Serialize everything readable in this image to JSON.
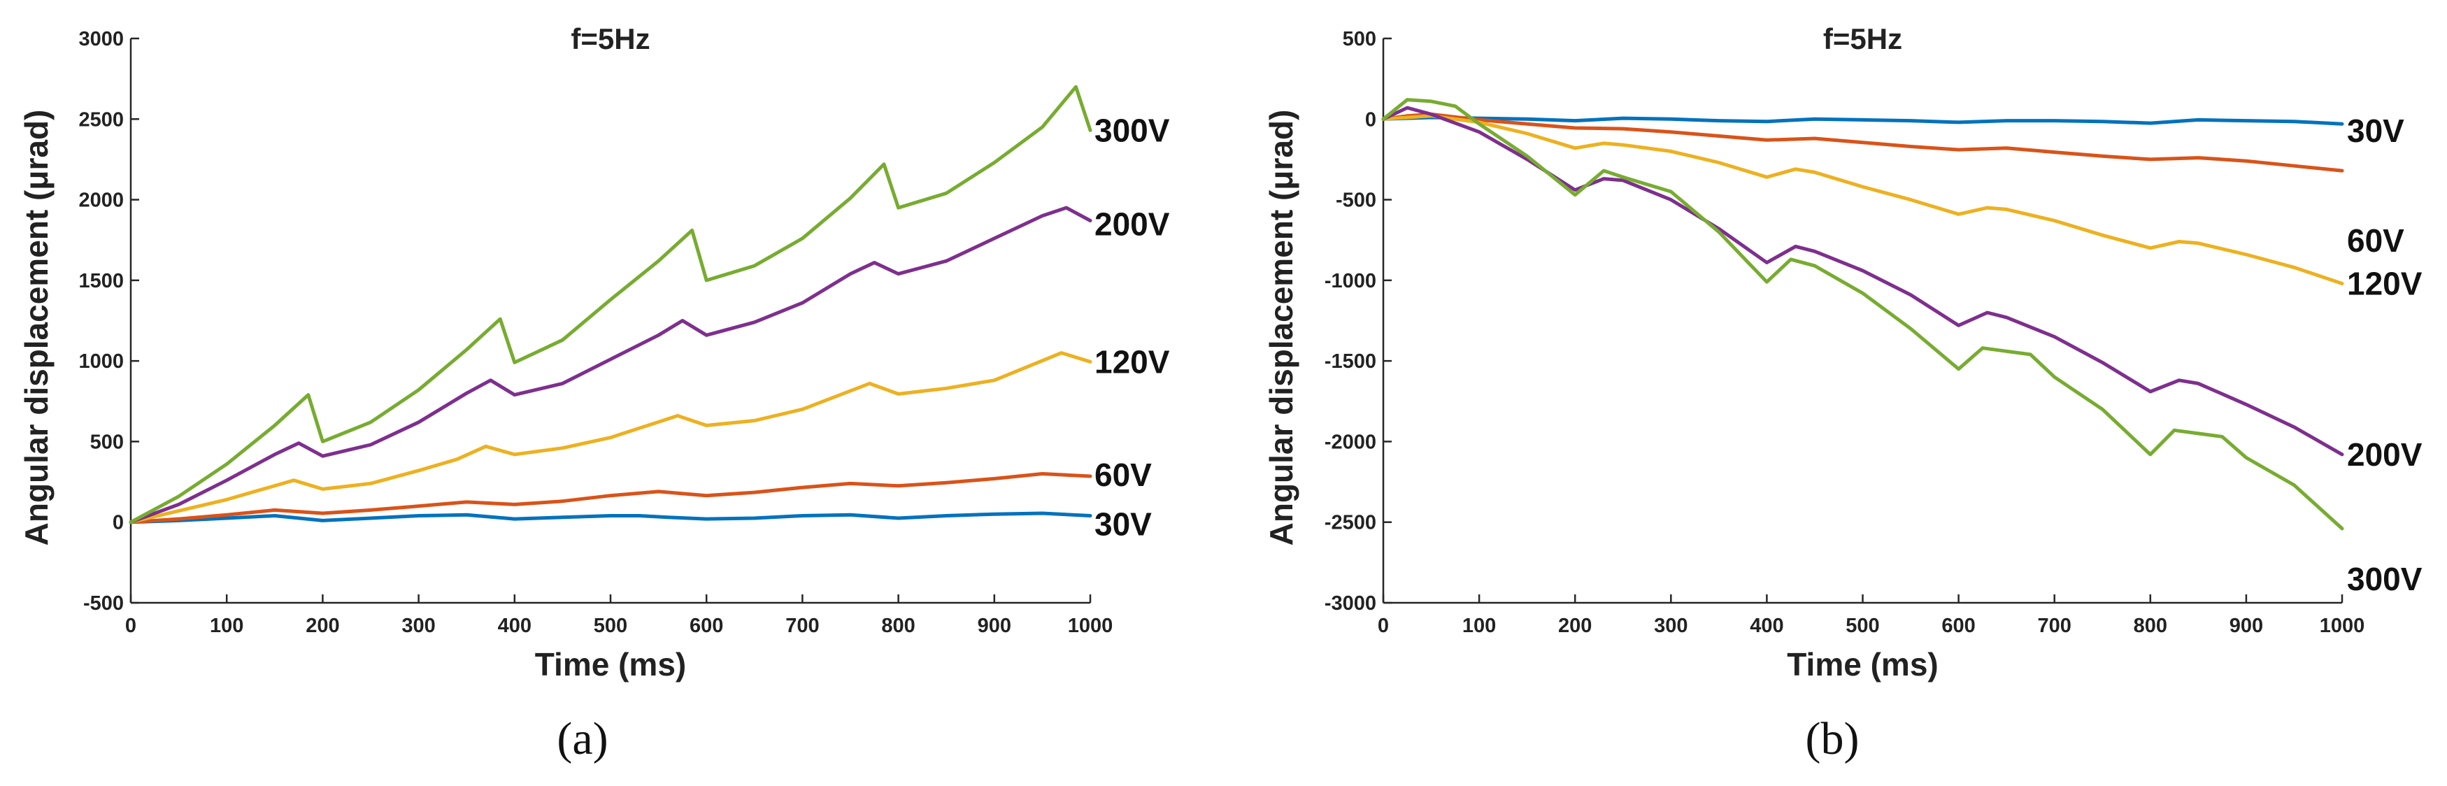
{
  "chart_data": [
    {
      "id": "a",
      "type": "line",
      "title": "f=5Hz",
      "caption": "(a)",
      "xlabel": "Time (ms)",
      "ylabel": "Angular displacement (μrad)",
      "xlim": [
        0,
        1000
      ],
      "ylim": [
        -500,
        3000
      ],
      "xticks": [
        0,
        100,
        200,
        300,
        400,
        500,
        600,
        700,
        800,
        900,
        1000
      ],
      "yticks": [
        -500,
        0,
        500,
        1000,
        1500,
        2000,
        2500,
        3000
      ],
      "series": [
        {
          "name": "30V",
          "color": "#0072BD",
          "x": [
            0,
            50,
            100,
            150,
            200,
            250,
            300,
            350,
            400,
            450,
            500,
            530,
            560,
            600,
            650,
            700,
            750,
            800,
            850,
            900,
            950,
            1000
          ],
          "y": [
            0,
            10,
            25,
            40,
            10,
            25,
            40,
            45,
            20,
            30,
            40,
            40,
            30,
            20,
            25,
            40,
            45,
            25,
            40,
            50,
            55,
            40
          ]
        },
        {
          "name": "60V",
          "color": "#D95319",
          "x": [
            0,
            50,
            100,
            150,
            200,
            250,
            300,
            350,
            400,
            450,
            500,
            550,
            600,
            650,
            700,
            750,
            800,
            850,
            900,
            950,
            1000
          ],
          "y": [
            0,
            20,
            45,
            75,
            55,
            75,
            100,
            125,
            110,
            130,
            165,
            190,
            165,
            185,
            215,
            240,
            225,
            245,
            270,
            300,
            285
          ]
        },
        {
          "name": "120V",
          "color": "#EDB120",
          "x": [
            0,
            50,
            100,
            170,
            200,
            250,
            300,
            340,
            370,
            400,
            450,
            500,
            570,
            600,
            650,
            700,
            770,
            800,
            850,
            900,
            970,
            1000
          ],
          "y": [
            0,
            70,
            140,
            260,
            205,
            240,
            320,
            390,
            470,
            420,
            460,
            525,
            660,
            600,
            630,
            700,
            860,
            795,
            830,
            880,
            1050,
            995
          ]
        },
        {
          "name": "200V",
          "color": "#7E2F8E",
          "x": [
            0,
            50,
            100,
            150,
            175,
            200,
            250,
            300,
            350,
            375,
            400,
            450,
            500,
            550,
            575,
            600,
            650,
            700,
            750,
            775,
            800,
            850,
            900,
            950,
            975,
            1000
          ],
          "y": [
            0,
            110,
            260,
            420,
            490,
            410,
            480,
            620,
            800,
            880,
            790,
            860,
            1010,
            1160,
            1250,
            1160,
            1240,
            1360,
            1540,
            1610,
            1540,
            1620,
            1760,
            1900,
            1950,
            1870
          ]
        },
        {
          "name": "300V",
          "color": "#77AC30",
          "x": [
            0,
            50,
            100,
            150,
            185,
            200,
            250,
            300,
            350,
            385,
            400,
            450,
            500,
            550,
            585,
            600,
            650,
            700,
            750,
            785,
            800,
            850,
            900,
            950,
            985,
            1000
          ],
          "y": [
            0,
            160,
            360,
            600,
            790,
            500,
            620,
            820,
            1070,
            1260,
            990,
            1130,
            1380,
            1620,
            1810,
            1500,
            1590,
            1760,
            2010,
            2220,
            1950,
            2040,
            2230,
            2450,
            2700,
            2430
          ]
        }
      ]
    },
    {
      "id": "b",
      "type": "line",
      "title": "f=5Hz",
      "caption": "(b)",
      "xlabel": "Time (ms)",
      "ylabel": "Angular displacement (μrad)",
      "xlim": [
        0,
        1000
      ],
      "ylim": [
        -3000,
        500
      ],
      "xticks": [
        0,
        100,
        200,
        300,
        400,
        500,
        600,
        700,
        800,
        900,
        1000
      ],
      "yticks": [
        -3000,
        -2500,
        -2000,
        -1500,
        -1000,
        -500,
        0,
        500
      ],
      "series": [
        {
          "name": "30V",
          "color": "#0072BD",
          "x": [
            0,
            50,
            100,
            150,
            200,
            250,
            300,
            350,
            400,
            450,
            500,
            550,
            600,
            650,
            700,
            750,
            800,
            850,
            900,
            950,
            1000
          ],
          "y": [
            0,
            10,
            5,
            0,
            -10,
            5,
            0,
            -10,
            -15,
            0,
            -5,
            -10,
            -20,
            -10,
            -10,
            -15,
            -25,
            -5,
            -10,
            -15,
            -30
          ]
        },
        {
          "name": "60V",
          "color": "#D95319",
          "x": [
            0,
            25,
            50,
            100,
            150,
            200,
            250,
            300,
            350,
            400,
            450,
            500,
            550,
            600,
            650,
            700,
            750,
            800,
            850,
            900,
            950,
            1000
          ],
          "y": [
            0,
            20,
            30,
            -5,
            -30,
            -55,
            -60,
            -80,
            -105,
            -130,
            -120,
            -145,
            -170,
            -190,
            -180,
            -205,
            -230,
            -250,
            -240,
            -260,
            -290,
            -320
          ]
        },
        {
          "name": "120V",
          "color": "#EDB120",
          "x": [
            0,
            50,
            100,
            150,
            200,
            230,
            250,
            300,
            350,
            400,
            430,
            450,
            500,
            550,
            600,
            630,
            650,
            700,
            750,
            800,
            830,
            850,
            900,
            950,
            1000
          ],
          "y": [
            0,
            20,
            -20,
            -90,
            -180,
            -150,
            -160,
            -200,
            -270,
            -360,
            -310,
            -330,
            -420,
            -500,
            -590,
            -550,
            -560,
            -630,
            -720,
            -800,
            -760,
            -770,
            -840,
            -920,
            -1020
          ]
        },
        {
          "name": "200V",
          "color": "#7E2F8E",
          "x": [
            0,
            25,
            50,
            100,
            150,
            200,
            230,
            250,
            300,
            350,
            400,
            430,
            450,
            500,
            550,
            600,
            630,
            650,
            700,
            750,
            800,
            830,
            850,
            900,
            950,
            1000
          ],
          "y": [
            0,
            70,
            30,
            -80,
            -250,
            -440,
            -370,
            -380,
            -500,
            -680,
            -890,
            -790,
            -820,
            -940,
            -1090,
            -1280,
            -1200,
            -1230,
            -1350,
            -1510,
            -1690,
            -1620,
            -1640,
            -1770,
            -1910,
            -2080
          ]
        },
        {
          "name": "300V",
          "color": "#77AC30",
          "x": [
            0,
            25,
            50,
            75,
            100,
            150,
            200,
            230,
            250,
            300,
            350,
            400,
            425,
            450,
            500,
            550,
            600,
            625,
            650,
            675,
            700,
            750,
            800,
            825,
            850,
            875,
            900,
            950,
            1000
          ],
          "y": [
            0,
            120,
            110,
            80,
            -30,
            -230,
            -470,
            -320,
            -360,
            -450,
            -700,
            -1010,
            -870,
            -910,
            -1080,
            -1300,
            -1550,
            -1420,
            -1440,
            -1460,
            -1600,
            -1800,
            -2080,
            -1930,
            -1950,
            -1970,
            -2100,
            -2270,
            -2540
          ]
        }
      ]
    }
  ]
}
